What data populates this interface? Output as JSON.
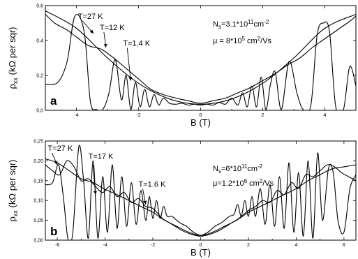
{
  "colors": {
    "line": "#000000",
    "background": "#ffffff"
  },
  "chart_data": [
    {
      "type": "line",
      "panel_label": "a",
      "xlabel": "B (T)",
      "ylabel_main": "ρ",
      "ylabel_sub": "xx",
      "ylabel_rest": " (kΩ per sqr)",
      "xlim": [
        -5,
        5
      ],
      "ylim": [
        0,
        0.6
      ],
      "grid": false,
      "xticks": [
        -4,
        -2,
        0,
        2,
        4
      ],
      "xtick_labels": [
        "-4",
        "-2",
        "0",
        "2",
        "4"
      ],
      "yticks": [
        0,
        0.2,
        0.4,
        0.6
      ],
      "ytick_labels": [
        "0,0",
        "0,2",
        "0,4",
        "0,6"
      ],
      "annotations": {
        "density": {
          "text": "N",
          "sub": "s",
          "rest": "=3.1*10",
          "sup": "11",
          "rest2": "cm",
          "sup2": "-2"
        },
        "mobility": {
          "text": "μ = 8*10",
          "sup": "5",
          "rest": " cm",
          "sup2": "2",
          "rest2": "/Vs"
        }
      },
      "series": [
        {
          "label": "T=27 K",
          "label_x": -3.95,
          "label_y": 0.525,
          "arrow_to_x": -3.45,
          "arrow_to_y": 0.44,
          "x": [
            -5,
            -4,
            -3,
            -2,
            -1,
            0,
            1,
            2,
            3,
            4,
            5
          ],
          "y": [
            0.57,
            0.47,
            0.3,
            0.155,
            0.065,
            0.035,
            0.065,
            0.155,
            0.3,
            0.47,
            0.55
          ]
        },
        {
          "label": "T=12 K",
          "label_x": -3.25,
          "label_y": 0.46,
          "arrow_to_x": -3.05,
          "arrow_to_y": 0.36,
          "x": [
            -5,
            -4.7,
            -4.3,
            -4,
            -3.6,
            -3.2,
            -2.8,
            -2.6,
            -2.4,
            -2,
            -1.6,
            -1.2,
            -0.8,
            -0.4,
            0,
            0.4,
            0.8,
            1.2,
            1.6,
            2,
            2.4,
            2.8,
            3.2,
            3.6,
            4,
            4.4,
            4.8,
            5
          ],
          "y": [
            0.55,
            0.5,
            0.46,
            0.42,
            0.37,
            0.35,
            0.3,
            0.27,
            0.24,
            0.18,
            0.12,
            0.09,
            0.07,
            0.055,
            0.04,
            0.055,
            0.07,
            0.1,
            0.13,
            0.17,
            0.21,
            0.26,
            0.3,
            0.36,
            0.41,
            0.46,
            0.51,
            0.54
          ]
        },
        {
          "label": "T=1.4 K",
          "label_x": -2.5,
          "label_y": 0.37,
          "arrow_to_x": -2.25,
          "arrow_to_y": 0.17,
          "x": [
            -5,
            -4.6,
            -4.3,
            -4.05,
            -3.75,
            -3.55,
            -3.35,
            -3.15,
            -2.95,
            -2.75,
            -2.55,
            -2.4,
            -2.25,
            -2.1,
            -1.95,
            -1.8,
            -1.65,
            -1.5,
            -1.35,
            -1.2,
            -1.0,
            -0.8,
            -0.6,
            -0.4,
            -0.2,
            0,
            0.2,
            0.4,
            0.6,
            0.8,
            1.0,
            1.2,
            1.35,
            1.5,
            1.65,
            1.8,
            1.95,
            2.1,
            2.25,
            2.4,
            2.6,
            2.85,
            3.1,
            3.3,
            3.55,
            3.75,
            3.95,
            4.15,
            4.35,
            4.6,
            4.8,
            5
          ],
          "y": [
            0.15,
            0.16,
            0.28,
            0.54,
            0.45,
            0.05,
            0.005,
            0.005,
            0.1,
            0.29,
            0.06,
            0.2,
            0.005,
            0.16,
            0.02,
            0.12,
            0.02,
            0.09,
            0.03,
            0.07,
            0.04,
            0.035,
            0.04,
            0.03,
            0.035,
            0.03,
            0.035,
            0.03,
            0.045,
            0.035,
            0.07,
            0.03,
            0.1,
            0.02,
            0.14,
            0.02,
            0.19,
            0.005,
            0.15,
            0.22,
            0.005,
            0.28,
            0.1,
            0.005,
            0.03,
            0.43,
            0.5,
            0.45,
            0.02,
            0.005,
            0.25,
            0.14
          ]
        }
      ]
    },
    {
      "type": "line",
      "panel_label": "b",
      "xlabel": "B (T)",
      "ylabel_main": "ρ",
      "ylabel_sub": "xx",
      "ylabel_rest": " (kΩ per sqr)",
      "xlim": [
        -6.5,
        6.5
      ],
      "ylim": [
        0,
        0.25
      ],
      "grid": false,
      "xticks": [
        -6,
        -4,
        -2,
        0,
        2,
        4,
        6
      ],
      "xtick_labels": [
        "-6",
        "-4",
        "-2",
        "0",
        "2",
        "4",
        "6"
      ],
      "yticks": [
        0,
        0.05,
        0.1,
        0.15,
        0.2,
        0.25
      ],
      "ytick_labels": [
        "0,00",
        "0,05",
        "0,10",
        "0,15",
        "0,20",
        "0,25"
      ],
      "annotations": {
        "density": {
          "text": "N",
          "sub": "s",
          "rest": "=6*10",
          "sup": "11",
          "rest2": "cm",
          "sup2": "-2"
        },
        "mobility": {
          "text": "μ=1.2*10",
          "sup": "6",
          "rest": " cm",
          "sup2": "2",
          "rest2": "/Vs"
        }
      },
      "series": [
        {
          "label": "T=27 K",
          "label_x": -6.4,
          "label_y": 0.225,
          "arrow_to_x": -6.0,
          "arrow_to_y": 0.19,
          "x": [
            -6.5,
            -6,
            -5.5,
            -5,
            -4.5,
            -4,
            -3.5,
            -3,
            -2.5,
            -2,
            -1.5,
            -1,
            -0.5,
            0,
            0.5,
            1,
            1.5,
            2,
            2.5,
            3,
            3.5,
            4,
            4.5,
            5,
            5.5,
            6,
            6.5
          ],
          "y": [
            0.205,
            0.195,
            0.175,
            0.155,
            0.145,
            0.128,
            0.115,
            0.1,
            0.085,
            0.07,
            0.05,
            0.035,
            0.02,
            0.012,
            0.02,
            0.035,
            0.05,
            0.07,
            0.085,
            0.1,
            0.115,
            0.13,
            0.15,
            0.165,
            0.18,
            0.185,
            0.19
          ]
        },
        {
          "label": "T=17 K",
          "label_x": -4.7,
          "label_y": 0.205,
          "arrow_to_x": -4.4,
          "arrow_to_y": 0.115,
          "x": [
            -6.5,
            -6.2,
            -5.9,
            -5.6,
            -5.3,
            -5,
            -4.7,
            -4.4,
            -4.1,
            -3.8,
            -3.5,
            -3.2,
            -2.9,
            -2.6,
            -2.3,
            -2,
            -1.6,
            -1.2,
            -0.8,
            -0.4,
            0,
            0.4,
            0.8,
            1.2,
            1.6,
            2,
            2.3,
            2.6,
            2.9,
            3.2,
            3.5,
            3.8,
            4.1,
            4.4,
            4.7,
            5,
            5.3,
            5.6,
            5.9,
            6.2,
            6.5
          ],
          "y": [
            0.19,
            0.175,
            0.165,
            0.2,
            0.185,
            0.15,
            0.155,
            0.135,
            0.12,
            0.135,
            0.11,
            0.12,
            0.095,
            0.105,
            0.085,
            0.08,
            0.055,
            0.04,
            0.025,
            0.015,
            0.01,
            0.015,
            0.025,
            0.04,
            0.055,
            0.075,
            0.085,
            0.1,
            0.095,
            0.125,
            0.115,
            0.145,
            0.13,
            0.165,
            0.16,
            0.175,
            0.19,
            0.185,
            0.17,
            0.16,
            0.15
          ]
        },
        {
          "label": "T=1.6 K",
          "label_x": -2.6,
          "label_y": 0.135,
          "arrow_to_x": -2.3,
          "arrow_to_y": 0.09,
          "x": [
            -6.5,
            -6.2,
            -5.95,
            -5.75,
            -5.55,
            -5.35,
            -5.1,
            -4.9,
            -4.7,
            -4.5,
            -4.3,
            -4.1,
            -3.9,
            -3.7,
            -3.5,
            -3.3,
            -3.1,
            -2.9,
            -2.7,
            -2.5,
            -2.3,
            -2.15,
            -2.0,
            -1.85,
            -1.7,
            -1.55,
            -1.4,
            -1.2,
            -0.9,
            -0.6,
            -0.3,
            0,
            0.3,
            0.6,
            0.9,
            1.2,
            1.4,
            1.55,
            1.7,
            1.85,
            2.0,
            2.15,
            2.3,
            2.5,
            2.7,
            2.9,
            3.1,
            3.3,
            3.5,
            3.7,
            3.9,
            4.1,
            4.3,
            4.5,
            4.7,
            4.9,
            5.1,
            5.35,
            5.55,
            5.75,
            6.0,
            6.25,
            6.5
          ],
          "y": [
            0.14,
            0.145,
            0.19,
            0.11,
            0.002,
            0.02,
            0.235,
            0.15,
            0.005,
            0.2,
            0.005,
            0.16,
            0.02,
            0.19,
            0.03,
            0.16,
            0.035,
            0.145,
            0.04,
            0.125,
            0.05,
            0.11,
            0.055,
            0.1,
            0.055,
            0.085,
            0.06,
            0.06,
            0.045,
            0.035,
            0.02,
            0.012,
            0.02,
            0.035,
            0.045,
            0.06,
            0.065,
            0.09,
            0.06,
            0.1,
            0.06,
            0.11,
            0.06,
            0.13,
            0.04,
            0.14,
            0.035,
            0.16,
            0.03,
            0.195,
            0.02,
            0.17,
            0.01,
            0.2,
            0.005,
            0.22,
            0.05,
            0.18,
            0.17,
            0.05,
            0.02,
            0.13,
            0.165
          ]
        }
      ]
    }
  ]
}
